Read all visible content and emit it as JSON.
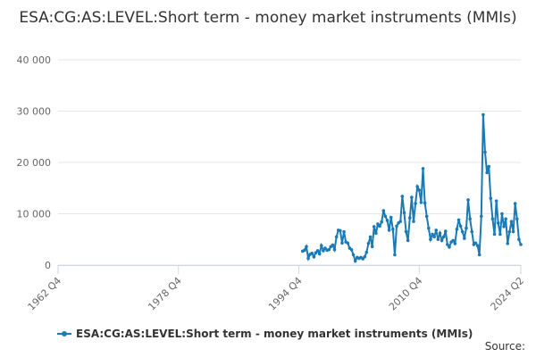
{
  "chart_data": {
    "type": "line",
    "title": "ESA:CG:AS:LEVEL:Short term - money market instruments (MMIs)",
    "source": "Source:",
    "grid": true,
    "legend": "bottom",
    "xlim": [
      "1962 Q4",
      "2024 Q2"
    ],
    "xticks": [
      "1962 Q4",
      "1978 Q4",
      "1994 Q4",
      "2010 Q4",
      "2024 Q2"
    ],
    "ylim": [
      0,
      40000
    ],
    "yticks": [
      0,
      {
        "value": 10000,
        "label": "10 000"
      },
      {
        "value": 20000,
        "label": "20 000"
      },
      {
        "value": 30000,
        "label": "30 000"
      },
      {
        "value": 40000,
        "label": "40 000"
      }
    ],
    "x": [
      "1995 Q2",
      "1995 Q3",
      "1995 Q4",
      "1996 Q1",
      "1996 Q2",
      "1996 Q3",
      "1996 Q4",
      "1997 Q1",
      "1997 Q2",
      "1997 Q3",
      "1997 Q4",
      "1998 Q1",
      "1998 Q2",
      "1998 Q3",
      "1998 Q4",
      "1999 Q1",
      "1999 Q2",
      "1999 Q3",
      "1999 Q4",
      "2000 Q1",
      "2000 Q2",
      "2000 Q3",
      "2000 Q4",
      "2001 Q1",
      "2001 Q2",
      "2001 Q3",
      "2001 Q4",
      "2002 Q1",
      "2002 Q2",
      "2002 Q3",
      "2002 Q4",
      "2003 Q1",
      "2003 Q2",
      "2003 Q3",
      "2003 Q4",
      "2004 Q1",
      "2004 Q2",
      "2004 Q3",
      "2004 Q4",
      "2005 Q1",
      "2005 Q2",
      "2005 Q3",
      "2005 Q4",
      "2006 Q1",
      "2006 Q2",
      "2006 Q3",
      "2006 Q4",
      "2007 Q1",
      "2007 Q2",
      "2007 Q3",
      "2007 Q4",
      "2008 Q1",
      "2008 Q2",
      "2008 Q3",
      "2008 Q4",
      "2009 Q1",
      "2009 Q2",
      "2009 Q3",
      "2009 Q4",
      "2010 Q1",
      "2010 Q2",
      "2010 Q3",
      "2010 Q4",
      "2011 Q1",
      "2011 Q2",
      "2011 Q3",
      "2011 Q4",
      "2012 Q1",
      "2012 Q2",
      "2012 Q3",
      "2012 Q4",
      "2013 Q1",
      "2013 Q2",
      "2013 Q3",
      "2013 Q4",
      "2014 Q1",
      "2014 Q2",
      "2014 Q3",
      "2014 Q4",
      "2015 Q1",
      "2015 Q2",
      "2015 Q3",
      "2015 Q4",
      "2016 Q1",
      "2016 Q2",
      "2016 Q3",
      "2016 Q4",
      "2017 Q1",
      "2017 Q2",
      "2017 Q3",
      "2017 Q4",
      "2018 Q1",
      "2018 Q2",
      "2018 Q3",
      "2018 Q4",
      "2019 Q1",
      "2019 Q2",
      "2019 Q3",
      "2019 Q4",
      "2020 Q1",
      "2020 Q2",
      "2020 Q3",
      "2020 Q4",
      "2021 Q1",
      "2021 Q2",
      "2021 Q3",
      "2021 Q4",
      "2022 Q1",
      "2022 Q2",
      "2022 Q3",
      "2022 Q4",
      "2023 Q1",
      "2023 Q2",
      "2023 Q3",
      "2023 Q4",
      "2024 Q1",
      "2024 Q2"
    ],
    "series": [
      {
        "name": "ESA:CG:AS:LEVEL:Short term - money market instruments (MMIs)",
        "color": "#1a7ab5",
        "values": [
          2700,
          2900,
          3600,
          1300,
          2100,
          2300,
          1600,
          2400,
          2800,
          2200,
          3800,
          2800,
          3300,
          2900,
          3000,
          3600,
          3900,
          3000,
          5500,
          6800,
          6700,
          4300,
          6500,
          4500,
          4300,
          3300,
          3000,
          2000,
          800,
          1500,
          1300,
          1500,
          1200,
          1600,
          2500,
          4200,
          5500,
          3600,
          7500,
          6200,
          8000,
          7600,
          8400,
          10600,
          9500,
          8700,
          6800,
          9300,
          7000,
          2000,
          7600,
          8200,
          8500,
          13400,
          10200,
          6500,
          4800,
          9200,
          13200,
          8500,
          12000,
          15300,
          14600,
          12200,
          18800,
          12100,
          9500,
          7200,
          5000,
          6000,
          5500,
          6800,
          5000,
          6200,
          4800,
          5500,
          6600,
          4000,
          3500,
          4500,
          4800,
          4200,
          7000,
          8800,
          7600,
          6500,
          5200,
          7200,
          12700,
          9000,
          6500,
          4000,
          4300,
          3800,
          2000,
          9500,
          29300,
          22000,
          18000,
          19200,
          13000,
          9000,
          6000,
          12500,
          8200,
          6000,
          10000,
          7500,
          9000,
          4200,
          6500,
          8500,
          6500,
          12000,
          9000,
          5000,
          4000
        ]
      }
    ]
  }
}
